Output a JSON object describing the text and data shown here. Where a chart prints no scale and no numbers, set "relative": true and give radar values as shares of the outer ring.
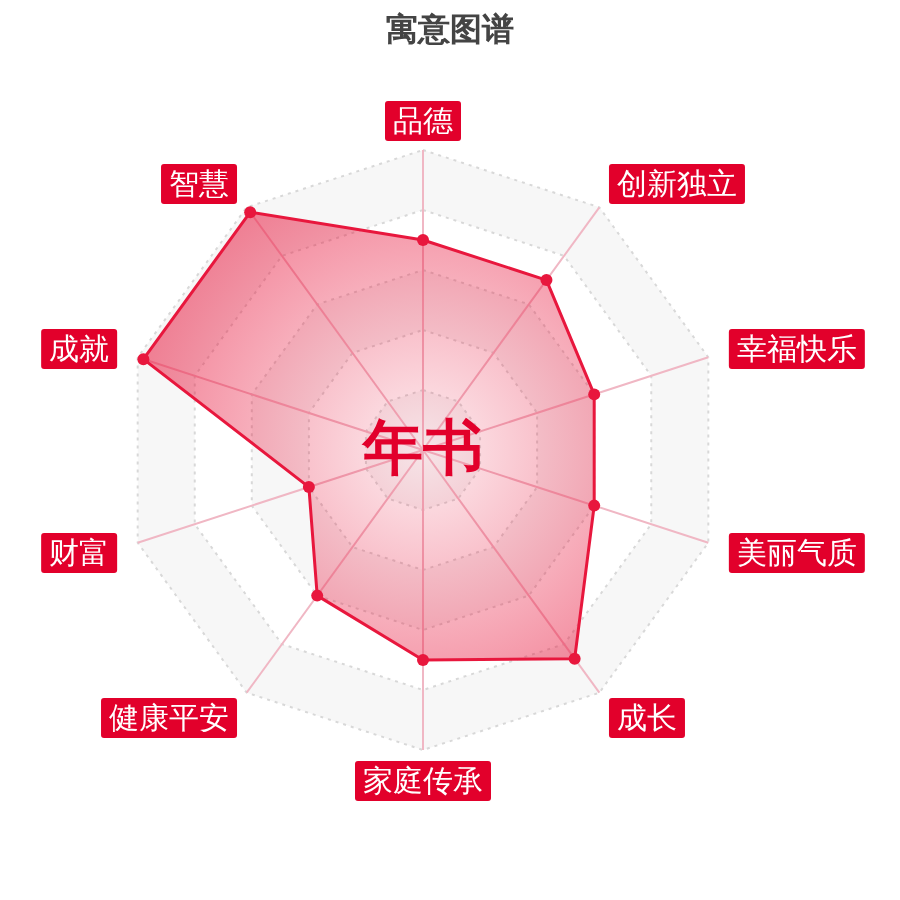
{
  "chart_data": {
    "type": "radar",
    "title": "寓意图谱",
    "categories": [
      "品德",
      "创新独立",
      "幸福快乐",
      "美丽气质",
      "成长",
      "家庭传承",
      "健康平安",
      "财富",
      "成就",
      "智慧"
    ],
    "relative": true,
    "series": [
      {
        "color": "#e8173d",
        "values": [
          0.7,
          0.7,
          0.6,
          0.6,
          0.86,
          0.7,
          0.6,
          0.4,
          0.98,
          0.98
        ]
      }
    ],
    "annotations": [
      "年书"
    ],
    "grid": true,
    "marker": "circle"
  }
}
